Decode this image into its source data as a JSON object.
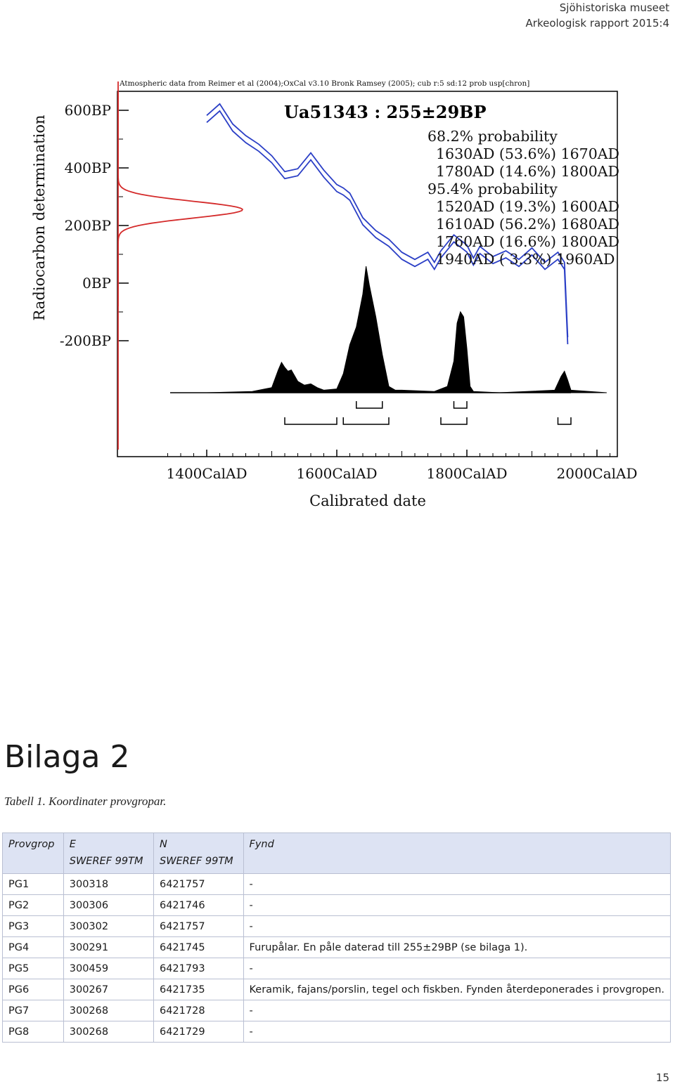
{
  "header": {
    "org": "Sjöhistoriska museet",
    "report": "Arkeologisk rapport 2015:4"
  },
  "chart_data": {
    "type": "line",
    "source_note": "Atmospheric data from Reimer et al (2004);OxCal v3.10 Bronk Ramsey (2005); cub r:5 sd:12 prob usp[chron]",
    "title": "Ua51343 : 255±29BP",
    "xlabel": "Calibrated date",
    "ylabel": "Radiocarbon determination",
    "x_ticks": [
      "1400CalAD",
      "1600CalAD",
      "1800CalAD",
      "2000CalAD"
    ],
    "y_ticks": [
      "600BP",
      "400BP",
      "200BP",
      "0BP",
      "-200BP"
    ],
    "xlim": [
      1320,
      2090
    ],
    "ylim": [
      -200,
      650
    ],
    "probability_text": [
      "68.2% probability",
      "1630AD (53.6%) 1670AD",
      "1780AD (14.6%) 1800AD",
      "95.4% probability",
      "1520AD (19.3%) 1600AD",
      "1610AD (56.2%) 1680AD",
      "1760AD (16.6%) 1800AD",
      "1940AD ( 3.3%) 1960AD"
    ],
    "measurement": {
      "bp": 255,
      "error": 29
    },
    "calibration_curve": {
      "x": [
        1400,
        1420,
        1440,
        1460,
        1480,
        1500,
        1520,
        1540,
        1560,
        1580,
        1600,
        1610,
        1620,
        1640,
        1660,
        1680,
        1700,
        1720,
        1740,
        1750,
        1760,
        1780,
        1800,
        1810,
        1820,
        1840,
        1860,
        1880,
        1900,
        1920,
        1940,
        1950,
        1955
      ],
      "y": [
        570,
        610,
        540,
        500,
        470,
        430,
        375,
        385,
        440,
        380,
        330,
        318,
        300,
        215,
        170,
        140,
        95,
        70,
        95,
        60,
        100,
        155,
        120,
        75,
        115,
        80,
        100,
        70,
        110,
        60,
        95,
        60,
        -200
      ]
    },
    "probability_distribution": {
      "x": [
        1400,
        1470,
        1500,
        1510,
        1515,
        1520,
        1525,
        1530,
        1540,
        1550,
        1560,
        1570,
        1580,
        1600,
        1610,
        1620,
        1630,
        1640,
        1645,
        1650,
        1660,
        1670,
        1680,
        1690,
        1700,
        1750,
        1770,
        1780,
        1785,
        1790,
        1795,
        1800,
        1805,
        1810,
        1850,
        1935,
        1945,
        1950,
        1955,
        1960,
        2015
      ],
      "y": [
        0,
        0.01,
        0.04,
        0.18,
        0.24,
        0.2,
        0.17,
        0.18,
        0.09,
        0.06,
        0.07,
        0.04,
        0.02,
        0.03,
        0.15,
        0.38,
        0.52,
        0.78,
        1.0,
        0.85,
        0.6,
        0.3,
        0.05,
        0.02,
        0.02,
        0.01,
        0.05,
        0.25,
        0.55,
        0.64,
        0.6,
        0.35,
        0.05,
        0.01,
        0,
        0.02,
        0.13,
        0.17,
        0.1,
        0.02,
        0
      ]
    },
    "range_brackets_68": [
      [
        1630,
        1670
      ],
      [
        1780,
        1800
      ]
    ],
    "range_brackets_95": [
      [
        1520,
        1600
      ],
      [
        1610,
        1680
      ],
      [
        1760,
        1800
      ],
      [
        1940,
        1960
      ]
    ],
    "colors": {
      "curve": "#2b3fc6",
      "measurement": "#d42a2a",
      "distribution": "#000000"
    }
  },
  "section": {
    "heading": "Bilaga 2",
    "caption": "Tabell 1. Koordinater provgropar."
  },
  "table": {
    "headers": {
      "col1": "Provgrop",
      "col2_line1": "E",
      "col2_line2": "SWEREF 99TM",
      "col3_line1": "N",
      "col3_line2": "SWEREF 99TM",
      "col4": "Fynd"
    },
    "rows": [
      {
        "id": "PG1",
        "e": "300318",
        "n": "6421757",
        "fynd": "-"
      },
      {
        "id": "PG2",
        "e": "300306",
        "n": "6421746",
        "fynd": "-"
      },
      {
        "id": "PG3",
        "e": "300302",
        "n": "6421757",
        "fynd": "-"
      },
      {
        "id": "PG4",
        "e": "300291",
        "n": "6421745",
        "fynd": "Furupålar. En påle daterad till 255±29BP (se bilaga 1)."
      },
      {
        "id": "PG5",
        "e": "300459",
        "n": "6421793",
        "fynd": "-"
      },
      {
        "id": "PG6",
        "e": "300267",
        "n": "6421735",
        "fynd": "Keramik, fajans/porslin, tegel och fiskben. Fynden återdeponerades i provgropen."
      },
      {
        "id": "PG7",
        "e": "300268",
        "n": "6421728",
        "fynd": "-"
      },
      {
        "id": "PG8",
        "e": "300268",
        "n": "6421729",
        "fynd": "-"
      }
    ]
  },
  "page_number": "15"
}
